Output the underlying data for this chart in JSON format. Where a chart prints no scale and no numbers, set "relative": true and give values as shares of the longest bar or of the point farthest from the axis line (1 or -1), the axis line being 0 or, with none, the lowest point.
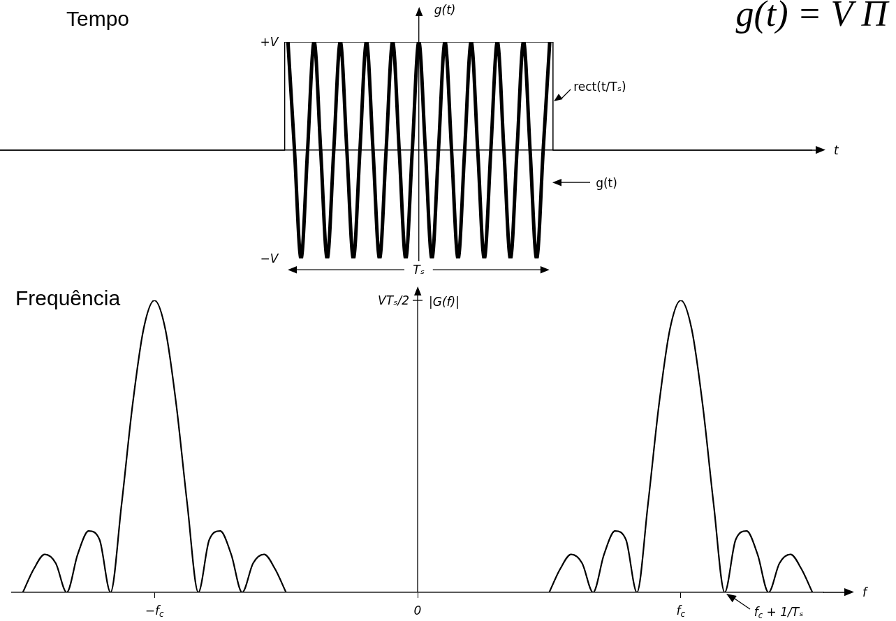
{
  "chart_data": [
    {
      "type": "line",
      "title": "Tempo",
      "subtitle": "g(t) = V Π",
      "xlabel": "t",
      "ylabel": "g(t)",
      "relative": true,
      "tick_labels": false,
      "legend": "right",
      "categories": [
        null,
        null,
        null,
        null,
        null,
        null,
        null,
        null,
        null,
        null,
        null,
        null,
        null,
        null,
        null,
        null,
        null,
        null,
        null,
        null,
        null,
        null,
        null,
        null,
        null,
        null,
        null,
        null,
        null,
        null,
        null,
        null,
        null,
        null,
        null,
        null,
        null,
        null,
        null,
        null,
        null,
        null,
        null,
        null,
        null,
        null,
        null,
        null,
        null,
        null,
        null,
        null,
        null,
        null,
        null,
        null,
        null,
        null,
        null,
        null,
        null,
        null,
        null,
        null,
        null,
        null,
        null,
        null,
        null,
        null,
        null,
        null,
        null,
        null,
        null,
        null,
        null,
        null,
        null,
        null,
        null,
        null,
        null,
        null,
        null,
        null,
        null,
        null,
        null,
        null,
        null,
        null,
        null,
        null,
        null,
        null,
        null,
        null,
        null,
        null,
        null,
        null,
        null,
        null,
        null,
        null,
        null,
        null,
        null,
        null,
        null,
        null,
        null,
        null,
        null,
        null,
        null,
        null,
        null,
        null,
        null,
        null,
        null,
        null,
        null
      ],
      "series": [
        {
          "name": "g(t)",
          "color": "#000000",
          "values": [
            null,
            null,
            null,
            null,
            null,
            null,
            null,
            null,
            null,
            null,
            null,
            null,
            null,
            null,
            null,
            null,
            null,
            null,
            null,
            null,
            null,
            null,
            null,
            null,
            null,
            null,
            null,
            null,
            null,
            null,
            null,
            null,
            null,
            null,
            null,
            null,
            null,
            null,
            null,
            null,
            null,
            null,
            null,
            null,
            1,
            0,
            -1,
            0,
            1,
            0,
            -1,
            0,
            1,
            0,
            -1,
            0,
            1,
            0,
            -1,
            0,
            1,
            0,
            -1,
            0,
            1,
            0,
            -1,
            0,
            1,
            0,
            -1,
            0,
            1,
            0,
            -1,
            0,
            1,
            0,
            -1,
            0,
            1,
            0,
            -1,
            0,
            1,
            null,
            null,
            null,
            null,
            null,
            null,
            null,
            null,
            null,
            null,
            null,
            null,
            null,
            null,
            null,
            null,
            null,
            null,
            null,
            null,
            null,
            null,
            null,
            null,
            null,
            null,
            null,
            null,
            null,
            null,
            null,
            null,
            null,
            null,
            null,
            null,
            null,
            null,
            null,
            null
          ]
        },
        {
          "name": "rect(t/Tₛ)",
          "color": "#000000",
          "type": "step",
          "values": [
            0,
            0,
            0,
            0,
            0,
            0,
            0,
            0,
            0,
            0,
            0,
            0,
            0,
            0,
            0,
            0,
            0,
            0,
            0,
            0,
            0,
            0,
            0,
            0,
            0,
            0,
            0,
            0,
            0,
            0,
            0,
            0,
            0,
            0,
            0,
            0,
            0,
            0,
            0,
            0,
            0,
            0,
            0,
            0,
            1,
            1,
            1,
            1,
            1,
            1,
            1,
            1,
            1,
            1,
            1,
            1,
            1,
            1,
            1,
            1,
            1,
            1,
            1,
            1,
            1,
            1,
            1,
            1,
            1,
            1,
            1,
            1,
            1,
            1,
            1,
            1,
            1,
            1,
            1,
            1,
            1,
            1,
            1,
            1,
            1,
            0,
            0,
            0,
            0,
            0,
            0,
            0,
            0,
            0,
            0,
            0,
            0,
            0,
            0,
            0,
            0,
            0,
            0,
            0,
            0,
            0,
            0,
            0,
            0,
            0,
            0,
            0,
            0,
            0,
            0,
            0,
            0,
            0,
            0,
            0,
            0,
            0,
            0,
            0,
            0
          ]
        }
      ],
      "annotations": [
        "+V",
        "−V",
        "Tₛ"
      ]
    },
    {
      "type": "line",
      "title": "Frequência",
      "xlabel": "f",
      "ylabel": "|G(f)|",
      "relative": true,
      "categories": [
        null,
        null,
        null,
        null,
        null,
        null,
        null,
        null,
        null,
        null,
        null,
        null,
        null,
        "−f$_{c}$",
        null,
        null,
        null,
        null,
        null,
        null,
        null,
        null,
        null,
        null,
        null,
        null,
        null,
        null,
        null,
        null,
        null,
        null,
        null,
        null,
        null,
        null,
        null,
        "0",
        null,
        null,
        null,
        null,
        null,
        null,
        null,
        null,
        null,
        null,
        null,
        null,
        null,
        null,
        null,
        null,
        null,
        null,
        null,
        null,
        null,
        null,
        null,
        "f$_{c}$",
        null,
        null,
        null,
        null,
        null,
        null,
        null,
        null,
        null,
        null,
        null,
        null,
        null
      ],
      "series": [
        {
          "color": "#000000",
          "values": [
            null,
            0,
            0.08,
            0.13,
            0.1,
            0,
            0.13,
            0.21,
            0.18,
            0,
            0.3,
            0.64,
            0.9,
            1,
            0.9,
            0.64,
            0.3,
            0,
            0.18,
            0.21,
            0.13,
            0,
            0.1,
            0.13,
            0.08,
            0,
            null,
            null,
            null,
            null,
            null,
            null,
            null,
            null,
            null,
            null,
            null,
            null,
            null,
            null,
            null,
            null,
            null,
            null,
            null,
            null,
            null,
            null,
            null,
            0,
            0.08,
            0.13,
            0.1,
            0,
            0.13,
            0.21,
            0.18,
            0,
            0.3,
            0.64,
            0.9,
            1,
            0.9,
            0.64,
            0.3,
            0,
            0.18,
            0.21,
            0.13,
            0,
            0.1,
            0.13,
            0.08,
            0,
            null
          ]
        }
      ],
      "annotations": [
        "VTₛ/2",
        "f$_{c}$ + 1/Tₛ"
      ]
    }
  ]
}
